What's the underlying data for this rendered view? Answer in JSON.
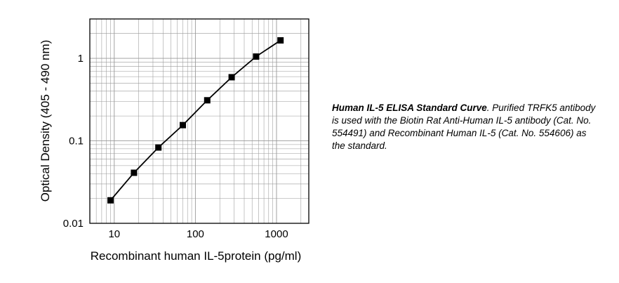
{
  "chart_data": {
    "type": "line",
    "x_scale": "log",
    "y_scale": "log",
    "xlim": [
      5,
      2500
    ],
    "ylim": [
      0.01,
      3
    ],
    "x_ticks": [
      "10",
      "100",
      "1000"
    ],
    "y_ticks": [
      "0.01",
      "0.1",
      "1"
    ],
    "xlabel": "Recombinant human IL-5protein (pg/ml)",
    "ylabel": "Optical Density (405 - 490 nm)",
    "grid": true,
    "marker": "square",
    "colors": {
      "line": "#000000",
      "marker": "#000000",
      "grid": "#999999"
    },
    "series": [
      {
        "x": [
          9,
          17.5,
          35,
          70,
          140,
          280,
          560,
          1120
        ],
        "y": [
          0.019,
          0.041,
          0.083,
          0.155,
          0.31,
          0.59,
          1.05,
          1.65
        ]
      }
    ]
  },
  "caption": {
    "title": "Human IL-5 ELISA Standard Curve",
    "text": ". Purified TRFK5 antibody is used with the Biotin Rat Anti-Human IL-5 antibody (Cat. No. 554491) and Recombinant Human IL-5 (Cat. No. 554606) as the standard."
  }
}
